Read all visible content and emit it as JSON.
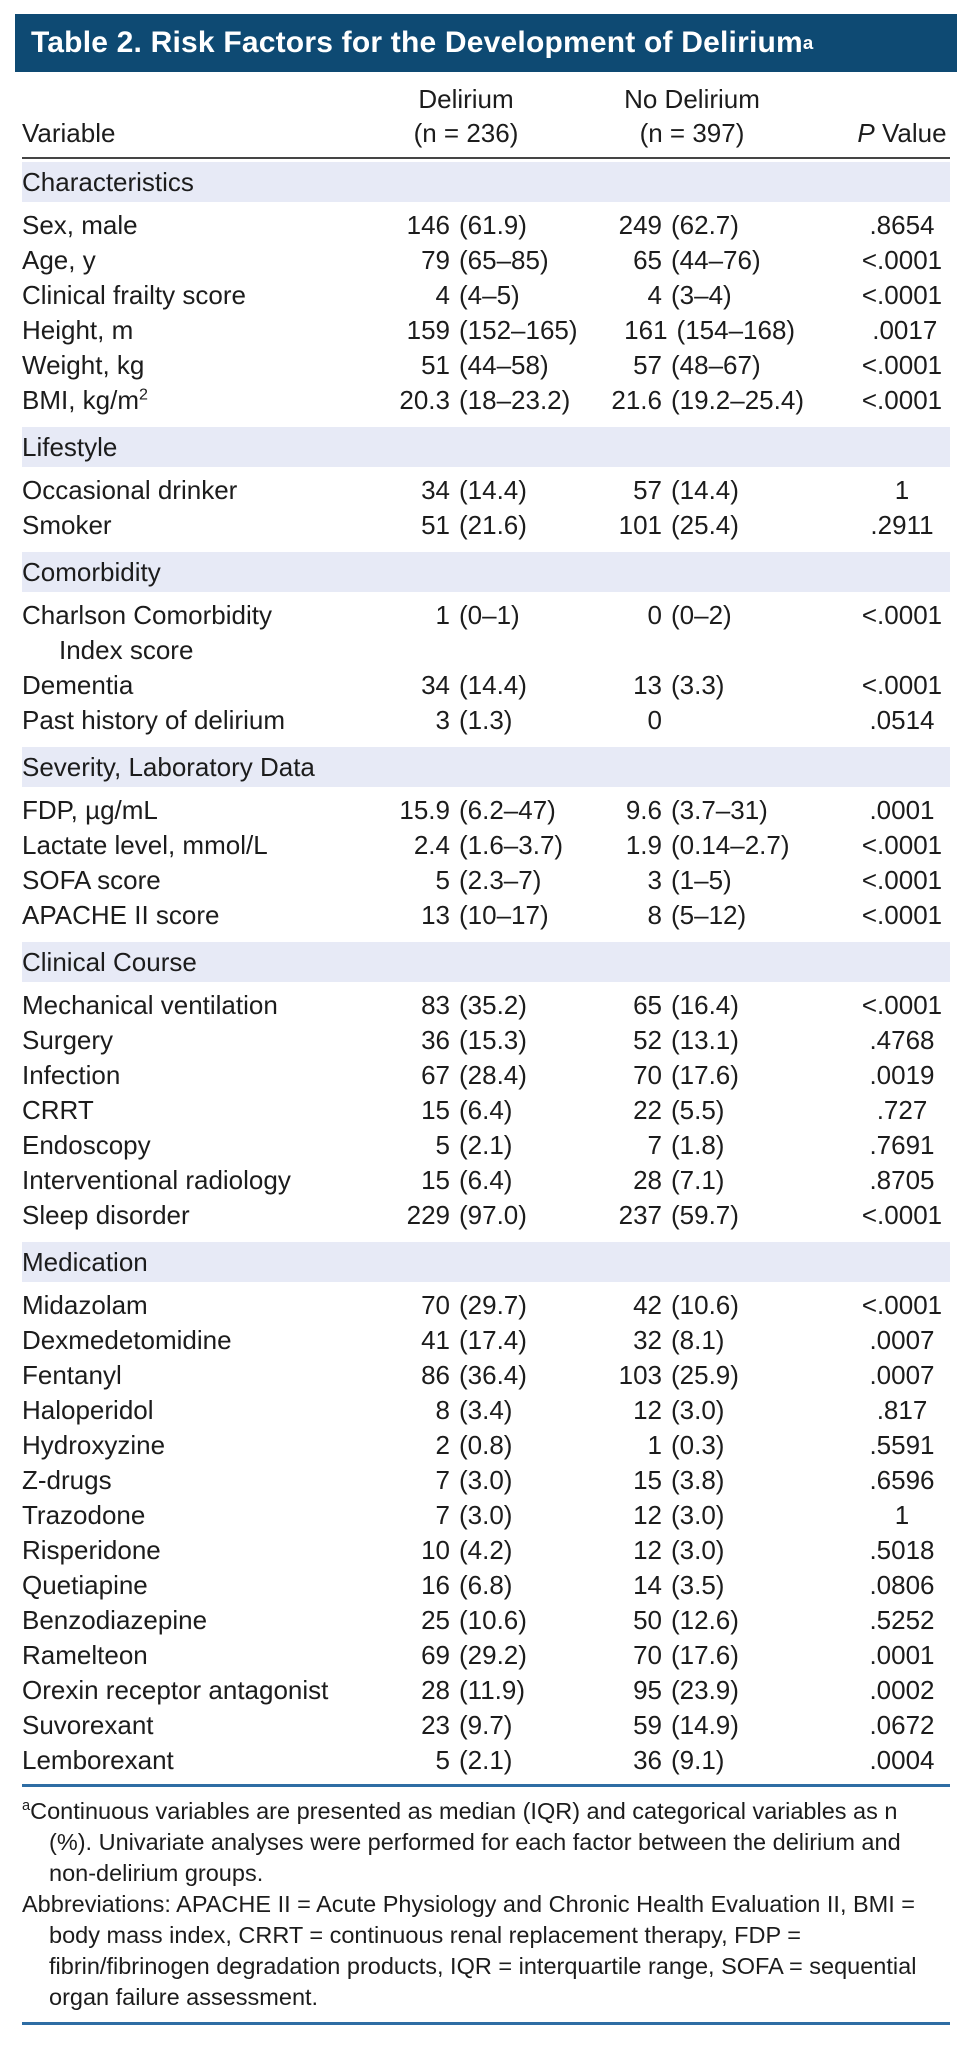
{
  "title": {
    "text": "Table 2. Risk Factors for the Development of Delirium",
    "superscript": "a"
  },
  "columns": {
    "variable": "Variable",
    "delirium_line1": "Delirium",
    "delirium_line2": "(n = 236)",
    "no_delirium_line1": "No Delirium",
    "no_delirium_line2": "(n = 397)",
    "p_italic": "P",
    "p_rest": " Value"
  },
  "sections": [
    {
      "header": "Characteristics",
      "rows": [
        {
          "label": "Sex, male",
          "delirium": "146 (61.9)",
          "no_delirium": "249 (62.7)",
          "p": ".8654"
        },
        {
          "label": "Age, y",
          "delirium": "79 (65–85)",
          "no_delirium": "65 (44–76)",
          "p": "<.0001"
        },
        {
          "label": "Clinical frailty score",
          "delirium": "4 (4–5)",
          "no_delirium": "4 (3–4)",
          "p": "<.0001"
        },
        {
          "label": "Height, m",
          "delirium": "159 (152–165)",
          "no_delirium": "161 (154–168)",
          "p": ".0017"
        },
        {
          "label": "Weight, kg",
          "delirium": "51 (44–58)",
          "no_delirium": "57 (48–67)",
          "p": "<.0001"
        },
        {
          "label": "BMI, kg/m",
          "label_sup": "2",
          "delirium": "20.3 (18–23.2)",
          "no_delirium": "21.6 (19.2–25.4)",
          "p": "<.0001"
        }
      ]
    },
    {
      "header": "Lifestyle",
      "rows": [
        {
          "label": "Occasional drinker",
          "delirium": "34 (14.4)",
          "no_delirium": "57 (14.4)",
          "p": "1"
        },
        {
          "label": "Smoker",
          "delirium": "51 (21.6)",
          "no_delirium": "101 (25.4)",
          "p": ".2911"
        }
      ]
    },
    {
      "header": "Comorbidity",
      "rows": [
        {
          "label": "Charlson Comorbidity",
          "label2": "Index score",
          "delirium": "1 (0–1)",
          "no_delirium": "0 (0–2)",
          "p": "<.0001"
        },
        {
          "label": "Dementia",
          "delirium": "34 (14.4)",
          "no_delirium": "13 (3.3)",
          "p": "<.0001"
        },
        {
          "label": "Past history of delirium",
          "delirium": "3 (1.3)",
          "no_delirium": "0",
          "p": ".0514"
        }
      ]
    },
    {
      "header": "Severity, Laboratory Data",
      "rows": [
        {
          "label": "FDP, µg/mL",
          "delirium": "15.9 (6.2–47)",
          "no_delirium": "9.6 (3.7–31)",
          "p": ".0001"
        },
        {
          "label": "Lactate level, mmol/L",
          "delirium": "2.4 (1.6–3.7)",
          "no_delirium": "1.9 (0.14–2.7)",
          "p": "<.0001"
        },
        {
          "label": "SOFA score",
          "delirium": "5 (2.3–7)",
          "no_delirium": "3 (1–5)",
          "p": "<.0001"
        },
        {
          "label": "APACHE II score",
          "delirium": "13 (10–17)",
          "no_delirium": "8 (5–12)",
          "p": "<.0001"
        }
      ]
    },
    {
      "header": "Clinical Course",
      "rows": [
        {
          "label": "Mechanical ventilation",
          "delirium": "83 (35.2)",
          "no_delirium": "65 (16.4)",
          "p": "<.0001"
        },
        {
          "label": "Surgery",
          "delirium": "36 (15.3)",
          "no_delirium": "52 (13.1)",
          "p": ".4768"
        },
        {
          "label": "Infection",
          "delirium": "67 (28.4)",
          "no_delirium": "70 (17.6)",
          "p": ".0019"
        },
        {
          "label": "CRRT",
          "delirium": "15 (6.4)",
          "no_delirium": "22 (5.5)",
          "p": ".727"
        },
        {
          "label": "Endoscopy",
          "delirium": "5 (2.1)",
          "no_delirium": "7 (1.8)",
          "p": ".7691"
        },
        {
          "label": "Interventional radiology",
          "delirium": "15 (6.4)",
          "no_delirium": "28 (7.1)",
          "p": ".8705"
        },
        {
          "label": "Sleep disorder",
          "delirium": "229 (97.0)",
          "no_delirium": "237 (59.7)",
          "p": "<.0001"
        }
      ]
    },
    {
      "header": "Medication",
      "rows": [
        {
          "label": "Midazolam",
          "delirium": "70 (29.7)",
          "no_delirium": "42 (10.6)",
          "p": "<.0001"
        },
        {
          "label": "Dexmedetomidine",
          "delirium": "41 (17.4)",
          "no_delirium": "32 (8.1)",
          "p": ".0007"
        },
        {
          "label": "Fentanyl",
          "delirium": "86 (36.4)",
          "no_delirium": "103 (25.9)",
          "p": ".0007"
        },
        {
          "label": "Haloperidol",
          "delirium": "8 (3.4)",
          "no_delirium": "12 (3.0)",
          "p": ".817"
        },
        {
          "label": "Hydroxyzine",
          "delirium": "2 (0.8)",
          "no_delirium": "1 (0.3)",
          "p": ".5591"
        },
        {
          "label": "Z-drugs",
          "delirium": "7 (3.0)",
          "no_delirium": "15 (3.8)",
          "p": ".6596"
        },
        {
          "label": "Trazodone",
          "delirium": "7 (3.0)",
          "no_delirium": "12 (3.0)",
          "p": "1"
        },
        {
          "label": "Risperidone",
          "delirium": "10 (4.2)",
          "no_delirium": "12 (3.0)",
          "p": ".5018"
        },
        {
          "label": "Quetiapine",
          "delirium": "16 (6.8)",
          "no_delirium": "14 (3.5)",
          "p": ".0806"
        },
        {
          "label": "Benzodiazepine",
          "delirium": "25 (10.6)",
          "no_delirium": "50 (12.6)",
          "p": ".5252"
        },
        {
          "label": "Ramelteon",
          "delirium": "69 (29.2)",
          "no_delirium": "70 (17.6)",
          "p": ".0001"
        },
        {
          "label": "Orexin receptor antagonist",
          "delirium": "28 (11.9)",
          "no_delirium": "95 (23.9)",
          "p": ".0002"
        },
        {
          "label": "Suvorexant",
          "delirium": "23 (9.7)",
          "no_delirium": "59 (14.9)",
          "p": ".0672"
        },
        {
          "label": "Lemborexant",
          "delirium": "5 (2.1)",
          "no_delirium": "36 (9.1)",
          "p": ".0004"
        }
      ]
    }
  ],
  "footnotes": {
    "note_sup": "a",
    "note": "Continuous variables are presented as median (IQR) and categorical variables as n (%). Univariate analyses were performed for each factor between the delirium and non-delirium groups.",
    "abbreviations": "Abbreviations: APACHE II = Acute Physiology and Chronic Health Evaluation II, BMI = body mass index, CRRT = continuous renal replacement therapy, FDP = fibrin/fibrinogen degradation products, IQR = interquartile range, SOFA = sequential organ failure assessment."
  },
  "colors": {
    "title_bar_bg": "#0e4a73",
    "title_text": "#ffffff",
    "band_bg": "#e7eaf6",
    "rule_dark": "#454545",
    "rule_blue": "#2e6da4",
    "text_color": "#1c1c1c"
  }
}
